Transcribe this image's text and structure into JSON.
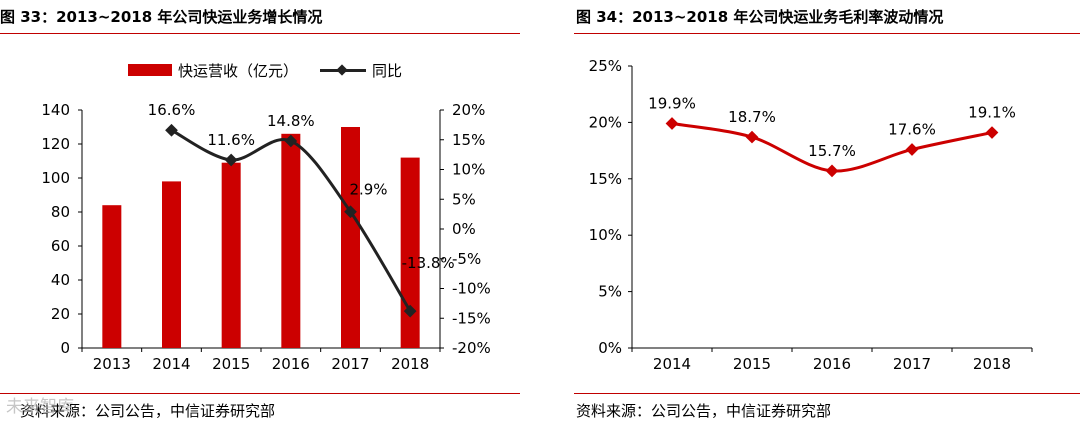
{
  "left": {
    "title": "图 33：2013~2018 年公司快运业务增长情况",
    "source": "资料来源：公司公告，中信证券研究部"
  },
  "right": {
    "title": "图 34：2013~2018 年公司快运业务毛利率波动情况",
    "source": "资料来源：公司公告，中信证券研究部"
  },
  "watermark": "未来智库",
  "colors": {
    "accent": "#cc0000",
    "line_dark": "#222222",
    "rule": "#c00000"
  },
  "chart_data": [
    {
      "type": "bar",
      "categories": [
        "2013",
        "2014",
        "2015",
        "2016",
        "2017",
        "2018"
      ],
      "series": [
        {
          "name": "快运营收（亿元）",
          "type": "bar",
          "axis": "left",
          "values": [
            84,
            98,
            109,
            126,
            130,
            112
          ]
        },
        {
          "name": "同比",
          "type": "line",
          "axis": "right",
          "values": [
            null,
            16.6,
            11.6,
            14.8,
            2.9,
            -13.8
          ],
          "labels": [
            "",
            "16.6%",
            "11.6%",
            "14.8%",
            "2.9%",
            "-13.8%"
          ]
        }
      ],
      "y_left": {
        "min": 0,
        "max": 140,
        "ticks": [
          0,
          20,
          40,
          60,
          80,
          100,
          120,
          140
        ]
      },
      "y_right": {
        "min": -20,
        "max": 20,
        "ticks": [
          -20,
          -15,
          -10,
          -5,
          0,
          5,
          10,
          15,
          20
        ],
        "tick_labels": [
          "-20%",
          "-15%",
          "-10%",
          "-5%",
          "0%",
          "5%",
          "10%",
          "15%",
          "20%"
        ]
      },
      "legend_position": "top-center",
      "grid": false
    },
    {
      "type": "line",
      "categories": [
        "2014",
        "2015",
        "2016",
        "2017",
        "2018"
      ],
      "series": [
        {
          "name": "毛利率",
          "values": [
            19.9,
            18.7,
            15.7,
            17.6,
            19.1
          ],
          "labels": [
            "19.9%",
            "18.7%",
            "15.7%",
            "17.6%",
            "19.1%"
          ]
        }
      ],
      "y": {
        "min": 0,
        "max": 25,
        "ticks": [
          0,
          5,
          10,
          15,
          20,
          25
        ],
        "tick_labels": [
          "0%",
          "5%",
          "10%",
          "15%",
          "20%",
          "25%"
        ]
      },
      "grid": false
    }
  ]
}
